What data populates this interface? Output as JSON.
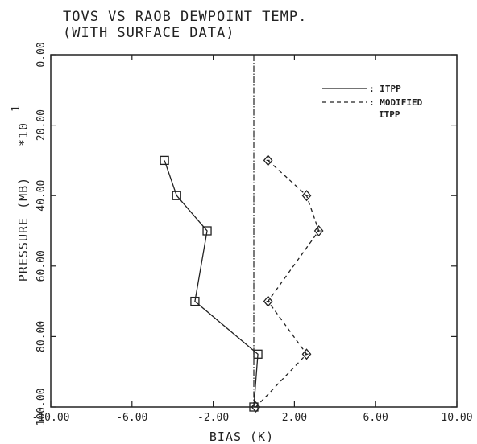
{
  "chart_data": {
    "type": "line",
    "title": "TOVS VS RAOB DEWPOINT TEMP.",
    "subtitle": "(WITH SURFACE DATA)",
    "xlabel": "BIAS (K)",
    "ylabel": "PRESSURE (MB)",
    "ylabel_scale": "*10",
    "ylabel_exponent": "1",
    "xlim": [
      -10,
      10
    ],
    "ylim": [
      100,
      0
    ],
    "x_ticks": [
      -10,
      -6,
      -2,
      2,
      6,
      10
    ],
    "x_tick_labels": [
      "-10.00",
      "-6.00",
      "-2.00",
      "2.00",
      "6.00",
      "10.00"
    ],
    "y_ticks": [
      0,
      20,
      40,
      60,
      80,
      100
    ],
    "y_tick_labels": [
      "0.00",
      "20.00",
      "40.00",
      "60.00",
      "80.00",
      "100.00"
    ],
    "reference_line_x": 0,
    "grid": false,
    "legend_position": "top-right",
    "series": [
      {
        "name": "ITPP",
        "style": "solid",
        "marker": "square",
        "x": [
          -4.4,
          -3.8,
          -2.3,
          -2.9,
          0.2,
          0.0
        ],
        "y": [
          30,
          40,
          50,
          70,
          85,
          100
        ]
      },
      {
        "name": "MODIFIED ITPP",
        "style": "dashed",
        "marker": "diamond",
        "x": [
          0.7,
          2.6,
          3.2,
          0.7,
          2.6,
          0.1
        ],
        "y": [
          30,
          40,
          50,
          70,
          85,
          100
        ]
      }
    ]
  }
}
